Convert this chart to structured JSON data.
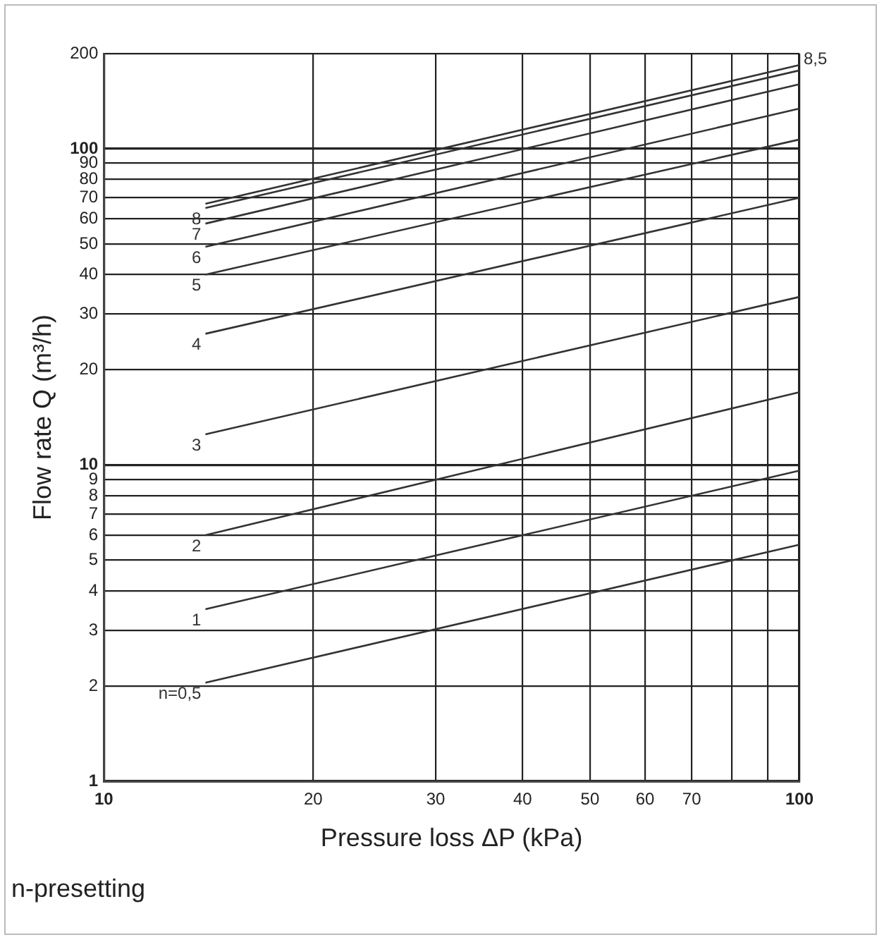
{
  "chart_data": {
    "type": "line",
    "xlabel": "Pressure loss ΔP (kPa)",
    "ylabel": "Flow rate Q (m³/h)",
    "log": "xy",
    "xlim": [
      10,
      100
    ],
    "ylim": [
      1,
      200
    ],
    "xticks": [
      10,
      20,
      30,
      40,
      50,
      60,
      70,
      {
        "value": 80,
        "label": null
      },
      {
        "value": 90,
        "label": null
      },
      100
    ],
    "yticks": [
      1,
      2,
      3,
      4,
      5,
      6,
      7,
      8,
      9,
      10,
      20,
      30,
      40,
      50,
      60,
      70,
      80,
      90,
      100,
      200
    ],
    "grid": true,
    "legend": false,
    "marker": "none",
    "line_style": "solid",
    "x": [
      14,
      100
    ],
    "series": [
      {
        "name": "n=0,5",
        "color": "#333333",
        "values": [
          2.05,
          5.6
        ]
      },
      {
        "name": "1",
        "color": "#333333",
        "values": [
          3.5,
          9.6
        ]
      },
      {
        "name": "2",
        "color": "#333333",
        "values": [
          6,
          17
        ]
      },
      {
        "name": "3",
        "color": "#333333",
        "values": [
          12.5,
          34
        ]
      },
      {
        "name": "4",
        "color": "#333333",
        "values": [
          26,
          70
        ]
      },
      {
        "name": "5",
        "color": "#333333",
        "values": [
          40,
          107
        ]
      },
      {
        "name": "6",
        "color": "#333333",
        "values": [
          49,
          134
        ]
      },
      {
        "name": "7",
        "color": "#333333",
        "values": [
          58,
          160
        ]
      },
      {
        "name": "8",
        "color": "#333333",
        "values": [
          65,
          177
        ]
      },
      {
        "color": "#333333",
        "values": [
          67,
          184
        ]
      }
    ],
    "annotations": [
      {
        "text": "8,5",
        "x": 100,
        "y": 184
      },
      "n-presetting"
    ]
  }
}
